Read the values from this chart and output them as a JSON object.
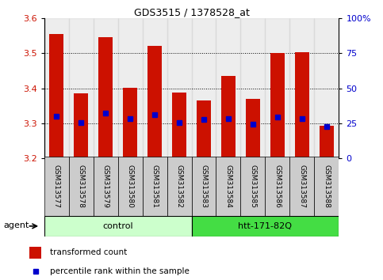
{
  "title": "GDS3515 / 1378528_at",
  "samples": [
    "GSM313577",
    "GSM313578",
    "GSM313579",
    "GSM313580",
    "GSM313581",
    "GSM313582",
    "GSM313583",
    "GSM313584",
    "GSM313585",
    "GSM313586",
    "GSM313587",
    "GSM313588"
  ],
  "bar_tops": [
    3.555,
    3.385,
    3.545,
    3.402,
    3.522,
    3.387,
    3.365,
    3.435,
    3.37,
    3.5,
    3.502,
    3.293
  ],
  "blue_dots": [
    3.32,
    3.302,
    3.328,
    3.312,
    3.325,
    3.302,
    3.31,
    3.312,
    3.298,
    3.318,
    3.312,
    3.29
  ],
  "ylim": [
    3.2,
    3.6
  ],
  "yticks_left": [
    3.2,
    3.3,
    3.4,
    3.5,
    3.6
  ],
  "yticks_right": [
    0,
    25,
    50,
    75,
    100
  ],
  "ytick_right_labels": [
    "0",
    "25",
    "50",
    "75",
    "100%"
  ],
  "bar_color": "#CC1100",
  "dot_color": "#0000CC",
  "bar_bottom": 3.2,
  "grid_lines": [
    3.3,
    3.4,
    3.5
  ],
  "groups": [
    {
      "label": "control",
      "start": 0,
      "end": 6,
      "color": "#CCFFCC"
    },
    {
      "label": "htt-171-82Q",
      "start": 6,
      "end": 12,
      "color": "#44DD44"
    }
  ],
  "agent_label": "agent",
  "legend_items": [
    {
      "color": "#CC1100",
      "label": "transformed count"
    },
    {
      "color": "#0000CC",
      "label": "percentile rank within the sample"
    }
  ],
  "bg_color": "#FFFFFF",
  "plot_bg": "#FFFFFF",
  "tick_label_color_left": "#CC1100",
  "tick_label_color_right": "#0000CC",
  "col_bg_color": "#CCCCCC"
}
